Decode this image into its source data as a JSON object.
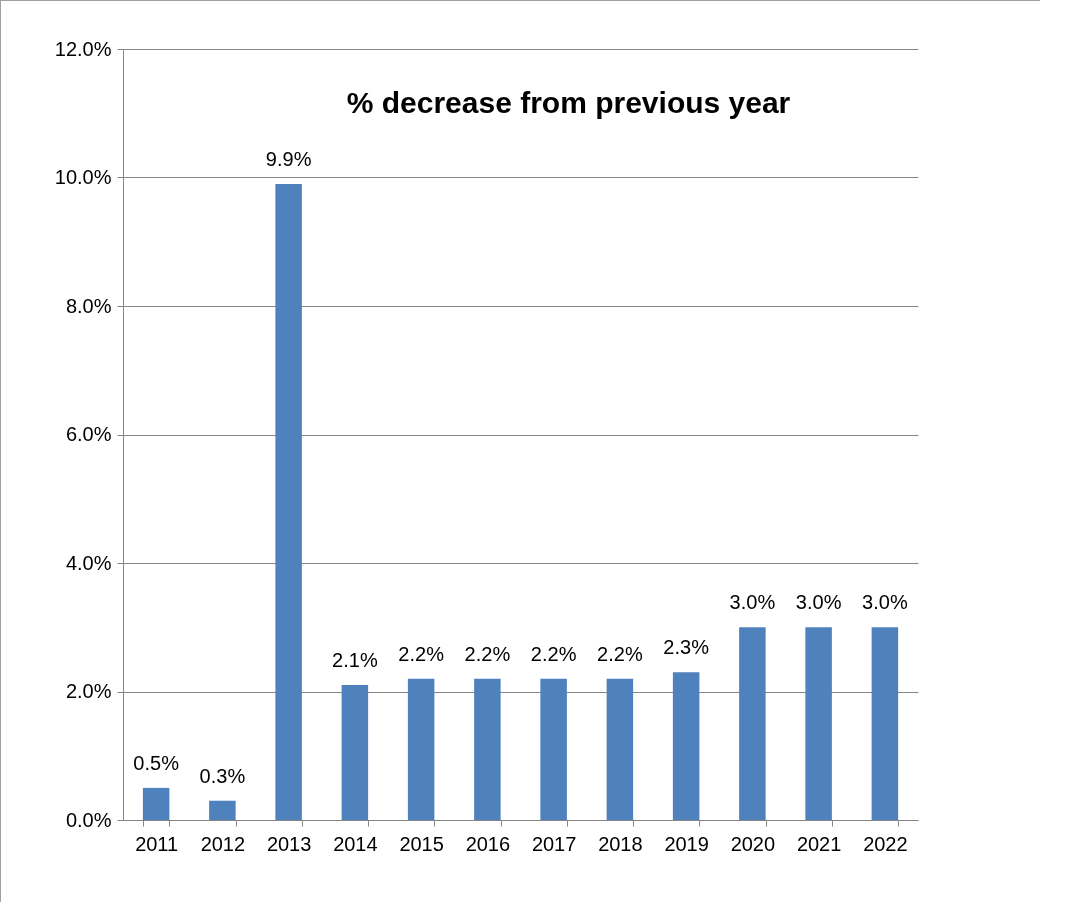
{
  "chart_data": {
    "type": "bar",
    "title": "% decrease from previous year",
    "categories": [
      "2011",
      "2012",
      "2013",
      "2014",
      "2015",
      "2016",
      "2017",
      "2018",
      "2019",
      "2020",
      "2021",
      "2022"
    ],
    "values": [
      0.5,
      0.3,
      9.9,
      2.1,
      2.2,
      2.2,
      2.2,
      2.2,
      2.3,
      3.0,
      3.0,
      3.0
    ],
    "value_labels": [
      "0.5%",
      "0.3%",
      "9.9%",
      "2.1%",
      "2.2%",
      "2.2%",
      "2.2%",
      "2.2%",
      "2.3%",
      "3.0%",
      "3.0%",
      "3.0%"
    ],
    "color": "#4f81bd",
    "ylim": [
      0,
      12
    ],
    "yticks": [
      {
        "value": 0,
        "label": "0.0%"
      },
      {
        "value": 2,
        "label": "2.0%"
      },
      {
        "value": 4,
        "label": "4.0%"
      },
      {
        "value": 6,
        "label": "6.0%"
      },
      {
        "value": 8,
        "label": "8.0%"
      },
      {
        "value": 10,
        "label": "10.0%"
      },
      {
        "value": 12,
        "label": "12.0%"
      }
    ],
    "grid": "y"
  }
}
